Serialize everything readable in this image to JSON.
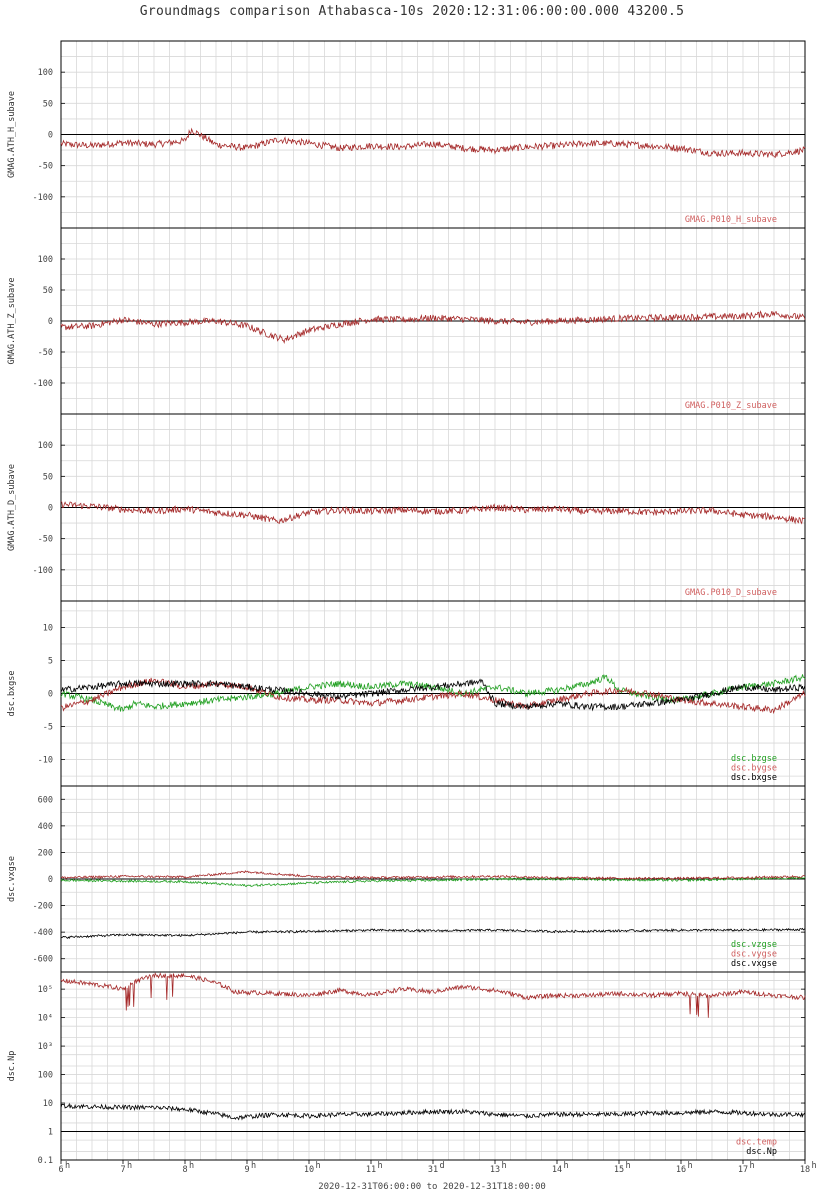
{
  "title": "Groundmags comparison Athabasca-10s 2020:12:31:06:00:00.000 43200.5",
  "time_range": "2020-12-31T06:00:00 to 2020-12-31T18:00:00",
  "colors": {
    "red": "#a52a2a",
    "green": "#22a022",
    "black": "#000000",
    "grid": "#d8d8d8",
    "legend_red": "#d06060"
  },
  "chart_data": [
    {
      "type": "line",
      "ylabel": "GMAG.ATH_H_subave",
      "ylim": [
        -150,
        150
      ],
      "yticks": [
        100,
        50,
        0,
        -50,
        -100
      ],
      "series": [
        {
          "name": "GMAG.P010_H_subave",
          "color": "red",
          "x": [
            6,
            6.5,
            7,
            7.5,
            8,
            8.1,
            8.5,
            9,
            9.5,
            10,
            10.5,
            11,
            11.5,
            12,
            12.5,
            13,
            13.5,
            14,
            14.5,
            15,
            15.5,
            16,
            16.5,
            17,
            17.5,
            18
          ],
          "values": [
            -15,
            -18,
            -13,
            -16,
            -10,
            8,
            -16,
            -22,
            -8,
            -14,
            -22,
            -18,
            -20,
            -15,
            -22,
            -25,
            -20,
            -18,
            -14,
            -15,
            -18,
            -22,
            -30,
            -30,
            -32,
            -25
          ]
        }
      ]
    },
    {
      "type": "line",
      "ylabel": "GMAG.ATH_Z_subave",
      "ylim": [
        -150,
        150
      ],
      "yticks": [
        100,
        50,
        0,
        -50,
        -100
      ],
      "series": [
        {
          "name": "GMAG.P010_Z_subave",
          "color": "red",
          "x": [
            6,
            6.5,
            7,
            7.5,
            8,
            8.5,
            9,
            9.3,
            9.6,
            10,
            10.5,
            11,
            11.5,
            12,
            12.5,
            13,
            13.5,
            14,
            14.5,
            15,
            15.5,
            16,
            16.5,
            17,
            17.5,
            18
          ],
          "values": [
            -10,
            -8,
            2,
            -5,
            -2,
            0,
            -8,
            -20,
            -30,
            -15,
            -5,
            3,
            2,
            5,
            3,
            0,
            -2,
            0,
            2,
            4,
            5,
            6,
            7,
            8,
            12,
            5
          ]
        }
      ]
    },
    {
      "type": "line",
      "ylabel": "GMAG.ATH_D_subave",
      "ylim": [
        -150,
        150
      ],
      "yticks": [
        100,
        50,
        0,
        -50,
        -100
      ],
      "series": [
        {
          "name": "GMAG.P010_D_subave",
          "color": "red",
          "x": [
            6,
            6.5,
            7,
            7.5,
            8,
            8.5,
            9,
            9.5,
            10,
            10.5,
            11,
            11.5,
            12,
            12.5,
            13,
            13.5,
            14,
            14.5,
            15,
            15.5,
            16,
            16.5,
            17,
            17.5,
            18
          ],
          "values": [
            5,
            2,
            -3,
            -6,
            -2,
            -8,
            -12,
            -22,
            -8,
            -4,
            -6,
            -4,
            -6,
            -5,
            0,
            -4,
            -2,
            -7,
            -5,
            -8,
            -6,
            -5,
            -12,
            -15,
            -22
          ]
        }
      ]
    },
    {
      "type": "line",
      "ylabel": "dsc.bxgse",
      "ylim": [
        -14,
        14
      ],
      "yticks": [
        10,
        5,
        0,
        -5,
        -10
      ],
      "series": [
        {
          "name": "dsc.bzgse",
          "color": "green",
          "x": [
            6,
            6.5,
            7,
            7.2,
            7.5,
            8,
            8.5,
            9,
            9.5,
            10,
            10.5,
            11,
            11.5,
            12,
            12.5,
            13,
            13.5,
            14,
            14.5,
            14.8,
            15,
            15.5,
            16,
            16.5,
            17,
            17.5,
            18
          ],
          "values": [
            0,
            -1,
            -2.5,
            -1.5,
            -2,
            -1.5,
            -1,
            -0.5,
            0,
            1,
            1.5,
            1,
            1.5,
            1,
            0,
            1,
            0,
            0.5,
            1.5,
            2.5,
            0.5,
            -0.5,
            -1,
            0,
            1,
            1.5,
            2.5
          ]
        },
        {
          "name": "dsc.bygse",
          "color": "red",
          "x": [
            6,
            6.5,
            7,
            7.5,
            8,
            8.5,
            9,
            9.5,
            10,
            10.5,
            11,
            11.5,
            12,
            12.5,
            13,
            13.5,
            14,
            14.5,
            15,
            15.5,
            16,
            16.5,
            17,
            17.5,
            18
          ],
          "values": [
            -2.2,
            -1,
            1,
            2,
            1,
            1.5,
            1,
            -0.5,
            -1,
            -1,
            -1.5,
            -1,
            -0.5,
            0,
            -1,
            -2,
            -1,
            0,
            0.5,
            0,
            -1,
            -1.5,
            -2,
            -2.5,
            0
          ]
        },
        {
          "name": "dsc.bxgse",
          "color": "black",
          "x": [
            6,
            6.5,
            7,
            7.5,
            8,
            8.5,
            9,
            9.5,
            10,
            10.5,
            11,
            11.5,
            12,
            12.5,
            12.8,
            13,
            13.5,
            14,
            14.5,
            15,
            15.5,
            16,
            16.5,
            17,
            17.5,
            18
          ],
          "values": [
            0.5,
            1,
            1.5,
            1.5,
            1.5,
            1.5,
            1,
            0.5,
            0,
            -0.5,
            0,
            0.5,
            1,
            1.5,
            1.8,
            -1.5,
            -2,
            -1.5,
            -2,
            -2,
            -1.5,
            -1,
            0,
            1,
            0.5,
            1
          ]
        }
      ]
    },
    {
      "type": "line",
      "ylabel": "dsc.vxgse",
      "ylim": [
        -700,
        700
      ],
      "yticks": [
        600,
        400,
        200,
        0,
        -200,
        -400,
        -600
      ],
      "series": [
        {
          "name": "dsc.vzgse",
          "color": "green",
          "x": [
            6,
            7,
            8,
            9,
            10,
            11,
            12,
            13,
            14,
            15,
            16,
            17,
            18
          ],
          "values": [
            -10,
            -15,
            -20,
            -50,
            -30,
            -15,
            -10,
            0,
            0,
            -5,
            -10,
            0,
            10
          ]
        },
        {
          "name": "dsc.vygse",
          "color": "red",
          "x": [
            6,
            7,
            8,
            9,
            10,
            11,
            12,
            13,
            14,
            15,
            16,
            17,
            18
          ],
          "values": [
            10,
            20,
            15,
            55,
            20,
            10,
            15,
            20,
            10,
            5,
            5,
            10,
            20
          ]
        },
        {
          "name": "dsc.vxgse",
          "color": "black",
          "x": [
            6,
            7,
            8,
            9,
            10,
            11,
            12,
            13,
            14,
            15,
            16,
            17,
            18
          ],
          "values": [
            -440,
            -420,
            -425,
            -400,
            -395,
            -385,
            -390,
            -385,
            -395,
            -390,
            -385,
            -385,
            -380
          ]
        }
      ]
    },
    {
      "type": "line",
      "ylabel": "dsc.Np",
      "log": true,
      "ylim": [
        0.1,
        400000
      ],
      "yticks": [
        "10⁵",
        "10⁴",
        "10³",
        "100",
        "10",
        "1",
        "0.1"
      ],
      "ytick_values": [
        100000,
        10000,
        1000,
        100,
        10,
        1,
        0.1
      ],
      "series": [
        {
          "name": "dsc.temp",
          "color": "red",
          "x": [
            6,
            7,
            7.5,
            8,
            8.8,
            9.5,
            10,
            10.5,
            11,
            11.5,
            12,
            12.5,
            13,
            13.5,
            14,
            14.5,
            15,
            15.5,
            16,
            16.5,
            17,
            17.5,
            18
          ],
          "values": [
            200000,
            100000,
            300000,
            300000,
            80000,
            70000,
            60000,
            90000,
            60000,
            100000,
            80000,
            120000,
            90000,
            50000,
            60000,
            60000,
            70000,
            60000,
            70000,
            60000,
            80000,
            60000,
            50000
          ]
        },
        {
          "name": "dsc.Np",
          "color": "black",
          "x": [
            6,
            7,
            7.5,
            8,
            8.8,
            9.5,
            10,
            10.5,
            11,
            11.5,
            12,
            12.5,
            13,
            13.5,
            14,
            14.5,
            15,
            15.5,
            16,
            16.5,
            17,
            17.5,
            18
          ],
          "values": [
            8,
            7,
            7,
            6,
            3,
            4,
            3.5,
            4,
            4,
            4.5,
            5,
            5,
            4,
            3.5,
            4,
            4,
            4,
            4.5,
            4.5,
            5,
            4.5,
            4,
            4
          ]
        }
      ]
    }
  ],
  "x_axis": {
    "range": [
      6,
      18
    ],
    "ticks": [
      {
        "value": 6,
        "label": "6",
        "sup": "h"
      },
      {
        "value": 7,
        "label": "7",
        "sup": "h"
      },
      {
        "value": 8,
        "label": "8",
        "sup": "h"
      },
      {
        "value": 9,
        "label": "9",
        "sup": "h"
      },
      {
        "value": 10,
        "label": "10",
        "sup": "h"
      },
      {
        "value": 11,
        "label": "11",
        "sup": "h"
      },
      {
        "value": 12,
        "label": "31",
        "sup": "d"
      },
      {
        "value": 13,
        "label": "13",
        "sup": "h"
      },
      {
        "value": 14,
        "label": "14",
        "sup": "h"
      },
      {
        "value": 15,
        "label": "15",
        "sup": "h"
      },
      {
        "value": 16,
        "label": "16",
        "sup": "h"
      },
      {
        "value": 17,
        "label": "17",
        "sup": "h"
      },
      {
        "value": 18,
        "label": "18",
        "sup": "h"
      }
    ]
  }
}
